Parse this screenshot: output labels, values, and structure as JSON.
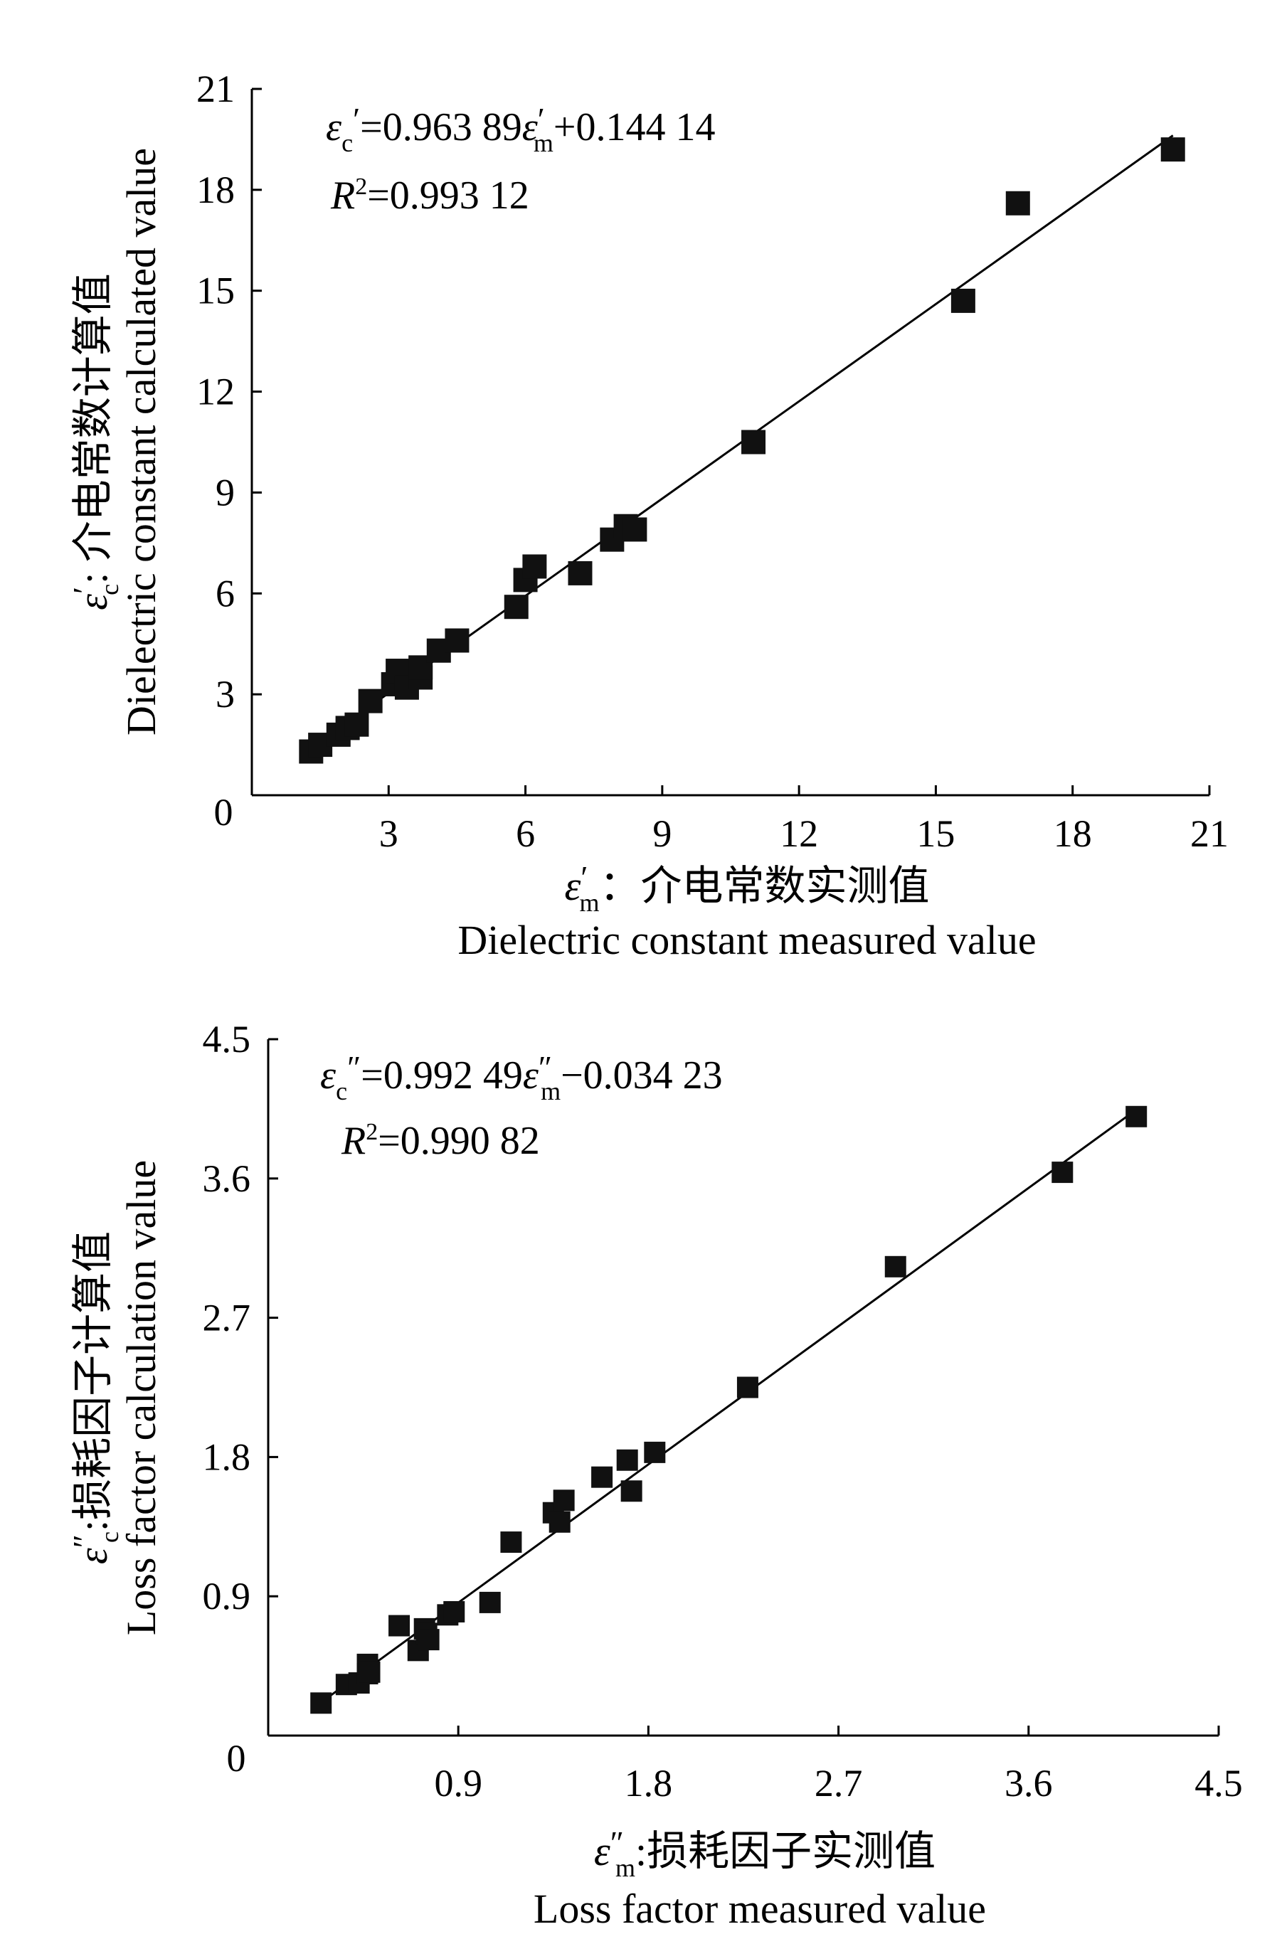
{
  "chart_data": [
    {
      "type": "scatter",
      "title": "",
      "equation": {
        "lhs_sym": "ε",
        "lhs_sub": "c",
        "lhs_sup": "′",
        "eq_part": "=0.963 89",
        "rhs_sym": "ε",
        "rhs_sup": "′",
        "rhs_sub": "m",
        "tail": "+0.144 14"
      },
      "r2": {
        "sym": "R",
        "sup": "2",
        "value": "=0.993 12"
      },
      "xlabel": {
        "sym": "ε",
        "sup": "′",
        "sub": "m",
        "zh": "：介电常数实测值",
        "en": "Dielectric constant measured value"
      },
      "ylabel": {
        "sym": "ε",
        "sup": "′",
        "sub": "c",
        "zh": ": 介电常数计算值",
        "en": "Dielectric constant calculated value"
      },
      "xlim": [
        0,
        21
      ],
      "ylim": [
        0,
        21
      ],
      "xticks": [
        "3",
        "6",
        "9",
        "12",
        "15",
        "18",
        "21"
      ],
      "yticks": [
        "3",
        "6",
        "9",
        "12",
        "15",
        "18",
        "21"
      ],
      "origin_label": "0",
      "fit": {
        "slope": 0.96389,
        "intercept": 0.14414,
        "x_range": [
          1.3,
          20.2
        ]
      },
      "series": [
        {
          "name": "samples",
          "x": [
            1.3,
            1.5,
            1.9,
            2.1,
            2.3,
            2.6,
            3.1,
            3.2,
            3.4,
            3.7,
            3.7,
            4.1,
            4.5,
            5.8,
            6.0,
            6.2,
            7.2,
            7.9,
            8.2,
            8.4,
            11.0,
            15.6,
            16.8,
            20.2
          ],
          "y": [
            1.3,
            1.5,
            1.8,
            2.0,
            2.1,
            2.8,
            3.3,
            3.7,
            3.2,
            3.5,
            3.8,
            4.3,
            4.6,
            5.6,
            6.4,
            6.8,
            6.6,
            7.6,
            8.0,
            7.9,
            10.5,
            14.7,
            17.6,
            19.2
          ]
        }
      ]
    },
    {
      "type": "scatter",
      "title": "",
      "equation": {
        "lhs_sym": "ε",
        "lhs_sub": "c",
        "lhs_sup": "″",
        "eq_part": "=0.992 49",
        "rhs_sym": "ε",
        "rhs_sup": "″",
        "rhs_sub": "m",
        "tail": "−0.034 23"
      },
      "r2": {
        "sym": "R",
        "sup": "2",
        "value": "=0.990 82"
      },
      "xlabel": {
        "sym": "ε",
        "sup": "″",
        "sub": "m",
        "zh": ":损耗因子实测值",
        "en": "Loss factor measured value"
      },
      "ylabel": {
        "sym": "ε",
        "sup": "″",
        "sub": "c",
        "zh": ":损耗因子计算值",
        "en": "Loss factor calculation value"
      },
      "xlim": [
        0,
        4.5
      ],
      "ylim": [
        0,
        4.5
      ],
      "xticks": [
        "0.9",
        "1.8",
        "2.7",
        "3.6",
        "4.5"
      ],
      "yticks": [
        "0.9",
        "1.8",
        "2.7",
        "3.6",
        "4.5"
      ],
      "origin_label": "0",
      "fit": {
        "slope": 0.99249,
        "intercept": -0.03423,
        "x_range": [
          0.25,
          4.1
        ]
      },
      "series": [
        {
          "name": "samples",
          "x": [
            0.25,
            0.37,
            0.43,
            0.47,
            0.47,
            0.48,
            0.62,
            0.71,
            0.74,
            0.75,
            0.76,
            0.85,
            0.88,
            1.05,
            1.15,
            1.35,
            1.38,
            1.4,
            1.58,
            1.7,
            1.72,
            1.83,
            2.27,
            2.97,
            3.76,
            4.11
          ],
          "y": [
            0.21,
            0.33,
            0.34,
            0.4,
            0.46,
            0.41,
            0.71,
            0.55,
            0.69,
            0.66,
            0.62,
            0.78,
            0.8,
            0.86,
            1.25,
            1.44,
            1.38,
            1.52,
            1.67,
            1.78,
            1.58,
            1.83,
            2.25,
            3.03,
            3.64,
            4.0
          ]
        }
      ]
    }
  ]
}
